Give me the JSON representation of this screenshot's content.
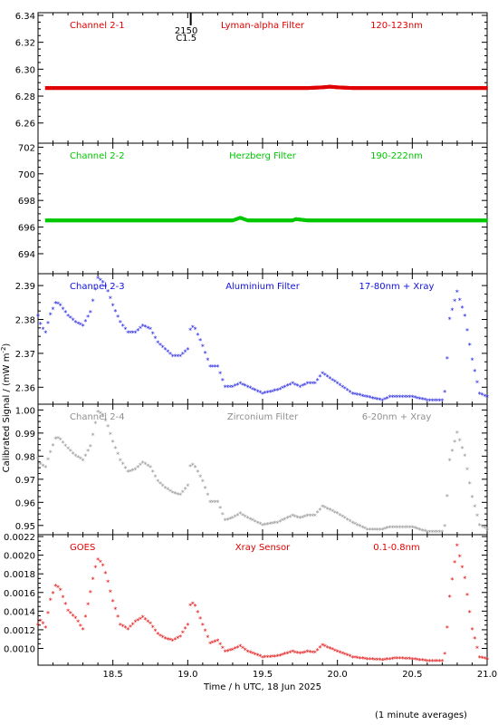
{
  "chart_data": [
    {
      "type": "scatter",
      "panel": 1,
      "color": "#e00000",
      "labels": {
        "channel": "Channel 2-1",
        "filter": "Lyman-alpha Filter",
        "band": "120-123nm"
      },
      "ylim": [
        6.245,
        6.342
      ],
      "yticks": [
        "6.26",
        "6.28",
        "6.30",
        "6.32",
        "6.34"
      ],
      "event_marker": {
        "x": 19.02,
        "lines": [
          "2150",
          "C1.5"
        ]
      },
      "series": [
        {
          "x": [
            18.05,
            18.2,
            18.4,
            18.6,
            18.8,
            19.0,
            19.2,
            19.4,
            19.6,
            19.8,
            19.9,
            19.95,
            20.0,
            20.1,
            20.2,
            20.4,
            20.6,
            20.8,
            21.0
          ],
          "y": [
            6.286,
            6.286,
            6.286,
            6.286,
            6.286,
            6.286,
            6.286,
            6.286,
            6.286,
            6.286,
            6.2865,
            6.287,
            6.2865,
            6.286,
            6.286,
            6.286,
            6.286,
            6.286,
            6.286
          ]
        }
      ]
    },
    {
      "type": "scatter",
      "panel": 2,
      "color": "#00c800",
      "labels": {
        "channel": "Channel 2-2",
        "filter": "Herzberg Filter",
        "band": "190-222nm"
      },
      "ylim": [
        692.5,
        702.3
      ],
      "yticks": [
        "694",
        "696",
        "698",
        "700",
        "702"
      ],
      "series": [
        {
          "x": [
            18.05,
            18.2,
            18.4,
            18.6,
            18.7,
            18.8,
            19.0,
            19.2,
            19.3,
            19.35,
            19.4,
            19.6,
            19.7,
            19.72,
            19.8,
            20.0,
            20.2,
            20.4,
            20.6,
            20.8,
            21.0
          ],
          "y": [
            696.5,
            696.5,
            696.5,
            696.5,
            696.5,
            696.5,
            696.5,
            696.5,
            696.5,
            696.7,
            696.5,
            696.5,
            696.5,
            696.6,
            696.5,
            696.5,
            696.5,
            696.5,
            696.5,
            696.5,
            696.5
          ]
        }
      ]
    },
    {
      "type": "scatter",
      "panel": 3,
      "color": "#1010e0",
      "labels": {
        "channel": "Channel 2-3",
        "filter": "Aluminium Filter",
        "band": "17-80nm + Xray"
      },
      "ylim": [
        2.355,
        2.3935
      ],
      "yticks": [
        "2.36",
        "2.37",
        "2.38",
        "2.39"
      ],
      "series": [
        {
          "x": [
            18.0,
            18.02,
            18.05,
            18.08,
            18.12,
            18.15,
            18.2,
            18.25,
            18.3,
            18.35,
            18.38,
            18.4,
            18.43,
            18.46,
            18.5,
            18.55,
            18.6,
            18.65,
            18.7,
            18.75,
            18.8,
            18.85,
            18.9,
            18.95,
            19.0,
            19.02,
            19.05,
            19.1,
            19.15,
            19.2,
            19.25,
            19.3,
            19.35,
            19.4,
            19.5,
            19.6,
            19.7,
            19.75,
            19.8,
            19.85,
            19.9,
            20.0,
            20.1,
            20.2,
            20.3,
            20.35,
            20.4,
            20.5,
            20.6,
            20.7,
            20.72,
            20.75,
            20.8,
            20.85,
            20.9,
            20.95,
            21.0
          ],
          "y": [
            2.381,
            2.378,
            2.376,
            2.381,
            2.385,
            2.384,
            2.381,
            2.379,
            2.378,
            2.382,
            2.388,
            2.392,
            2.391,
            2.389,
            2.384,
            2.379,
            2.376,
            2.376,
            2.378,
            2.377,
            2.373,
            2.371,
            2.369,
            2.369,
            2.371,
            2.378,
            2.377,
            2.372,
            2.366,
            2.366,
            2.36,
            2.36,
            2.361,
            2.36,
            2.358,
            2.359,
            2.361,
            2.36,
            2.361,
            2.361,
            2.364,
            2.361,
            2.358,
            2.357,
            2.356,
            2.357,
            2.357,
            2.357,
            2.356,
            2.356,
            2.359,
            2.38,
            2.388,
            2.381,
            2.368,
            2.358,
            2.357
          ]
        }
      ]
    },
    {
      "type": "scatter",
      "panel": 4,
      "color": "#909090",
      "labels": {
        "channel": "Channel 2-4",
        "filter": "Zirconium Filter",
        "band": "6-20nm + Xray"
      },
      "ylim": [
        0.946,
        1.0025
      ],
      "yticks": [
        "0.95",
        "0.96",
        "0.97",
        "0.98",
        "0.99",
        "1.00"
      ],
      "series": [
        {
          "x": [
            18.0,
            18.02,
            18.05,
            18.08,
            18.12,
            18.15,
            18.2,
            18.25,
            18.3,
            18.35,
            18.38,
            18.4,
            18.43,
            18.46,
            18.5,
            18.55,
            18.6,
            18.65,
            18.7,
            18.75,
            18.8,
            18.85,
            18.9,
            18.95,
            19.0,
            19.02,
            19.05,
            19.1,
            19.15,
            19.2,
            19.25,
            19.3,
            19.35,
            19.4,
            19.5,
            19.6,
            19.7,
            19.75,
            19.8,
            19.85,
            19.9,
            20.0,
            20.1,
            20.2,
            20.3,
            20.35,
            20.4,
            20.5,
            20.6,
            20.7,
            20.72,
            20.75,
            20.8,
            20.85,
            20.9,
            20.95,
            21.0
          ],
          "y": [
            0.979,
            0.976,
            0.975,
            0.981,
            0.988,
            0.987,
            0.983,
            0.98,
            0.978,
            0.984,
            0.993,
            0.999,
            0.998,
            0.994,
            0.986,
            0.978,
            0.973,
            0.974,
            0.977,
            0.975,
            0.969,
            0.966,
            0.964,
            0.963,
            0.967,
            0.977,
            0.975,
            0.969,
            0.96,
            0.96,
            0.952,
            0.953,
            0.955,
            0.953,
            0.95,
            0.951,
            0.954,
            0.953,
            0.954,
            0.954,
            0.958,
            0.955,
            0.951,
            0.948,
            0.948,
            0.949,
            0.949,
            0.949,
            0.947,
            0.947,
            0.95,
            0.978,
            0.99,
            0.98,
            0.962,
            0.95,
            0.948
          ]
        }
      ]
    },
    {
      "type": "scatter",
      "panel": 5,
      "color": "#e00000",
      "labels": {
        "channel": "GOES",
        "filter": "Xray Sensor",
        "band": "0.1-0.8nm"
      },
      "ylim": [
        0.00082,
        0.00222
      ],
      "yticks": [
        "0.0010",
        "0.0012",
        "0.0014",
        "0.0016",
        "0.0018",
        "0.0020",
        "0.0022"
      ],
      "series": [
        {
          "x": [
            18.0,
            18.02,
            18.05,
            18.08,
            18.12,
            18.15,
            18.2,
            18.25,
            18.3,
            18.35,
            18.38,
            18.4,
            18.43,
            18.46,
            18.5,
            18.55,
            18.6,
            18.65,
            18.7,
            18.75,
            18.8,
            18.85,
            18.9,
            18.95,
            19.0,
            19.02,
            19.05,
            19.1,
            19.15,
            19.2,
            19.25,
            19.3,
            19.35,
            19.4,
            19.5,
            19.6,
            19.7,
            19.75,
            19.8,
            19.85,
            19.9,
            20.0,
            20.1,
            20.2,
            20.3,
            20.35,
            20.4,
            20.5,
            20.6,
            20.7,
            20.72,
            20.75,
            20.8,
            20.85,
            20.9,
            20.95,
            21.0
          ],
          "y": [
            0.00125,
            0.0013,
            0.00122,
            0.0015,
            0.00168,
            0.00162,
            0.0014,
            0.00132,
            0.0012,
            0.0016,
            0.00185,
            0.00195,
            0.0019,
            0.00175,
            0.0015,
            0.00125,
            0.0012,
            0.00128,
            0.00133,
            0.00126,
            0.00115,
            0.0011,
            0.00108,
            0.00112,
            0.00125,
            0.0015,
            0.00145,
            0.00125,
            0.00105,
            0.00108,
            0.00096,
            0.00098,
            0.00102,
            0.00096,
            0.0009,
            0.00091,
            0.00096,
            0.00094,
            0.00096,
            0.00095,
            0.00103,
            0.00096,
            0.0009,
            0.00088,
            0.00087,
            0.00088,
            0.00089,
            0.00088,
            0.00086,
            0.00086,
            0.00095,
            0.00155,
            0.0021,
            0.00175,
            0.0012,
            0.0009,
            0.00088
          ]
        }
      ]
    }
  ],
  "axes": {
    "xlim": [
      18.0,
      21.0
    ],
    "xticks": [
      "18.5",
      "19.0",
      "19.5",
      "20.0",
      "20.5",
      "21.0"
    ],
    "xlabel": "Time / h UTC, 18 Jun 2025",
    "ylabel": "Calibrated Signal / (mW m",
    "ylabel_sup": "-2",
    "ylabel_end": ")"
  },
  "footnote": "(1 minute averages)"
}
